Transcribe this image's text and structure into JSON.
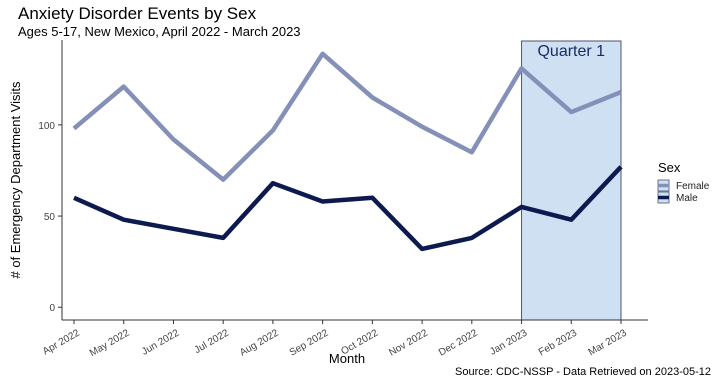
{
  "title": "Anxiety Disorder Events by Sex",
  "subtitle": "Ages 5-17, New Mexico, April 2022 - March 2023",
  "caption": "Source: CDC-NSSP - Data Retrieved on 2023-05-12",
  "colors": {
    "female": "#8590b8",
    "male": "#0d1a4f",
    "highlight_fill": "#cfe0f3",
    "highlight_stroke": "#4a5670",
    "annotation": "#1a2a66"
  },
  "chart_data": {
    "type": "line",
    "categories": [
      "Apr 2022",
      "May 2022",
      "Jun 2022",
      "Jul 2022",
      "Aug 2022",
      "Sep 2022",
      "Oct 2022",
      "Nov 2022",
      "Dec 2022",
      "Jan 2023",
      "Feb 2023",
      "Mar 2023"
    ],
    "series": [
      {
        "name": "Female",
        "values": [
          98,
          121,
          92,
          70,
          97,
          139,
          115,
          99,
          85,
          131,
          107,
          118
        ]
      },
      {
        "name": "Male",
        "values": [
          60,
          48,
          43,
          38,
          68,
          58,
          60,
          32,
          38,
          55,
          48,
          77
        ]
      }
    ],
    "xlabel": "Month",
    "ylabel": "# of Emergency Department Visits",
    "ylim": [
      -7,
      146
    ],
    "yticks": [
      0,
      50,
      100
    ],
    "grid": false,
    "legend": {
      "title": "Sex",
      "position": "right",
      "entries": [
        "Female",
        "Male"
      ]
    },
    "annotation": {
      "label": "Quarter 1",
      "x_start": "Jan 2023",
      "x_end": "Mar 2023"
    }
  }
}
